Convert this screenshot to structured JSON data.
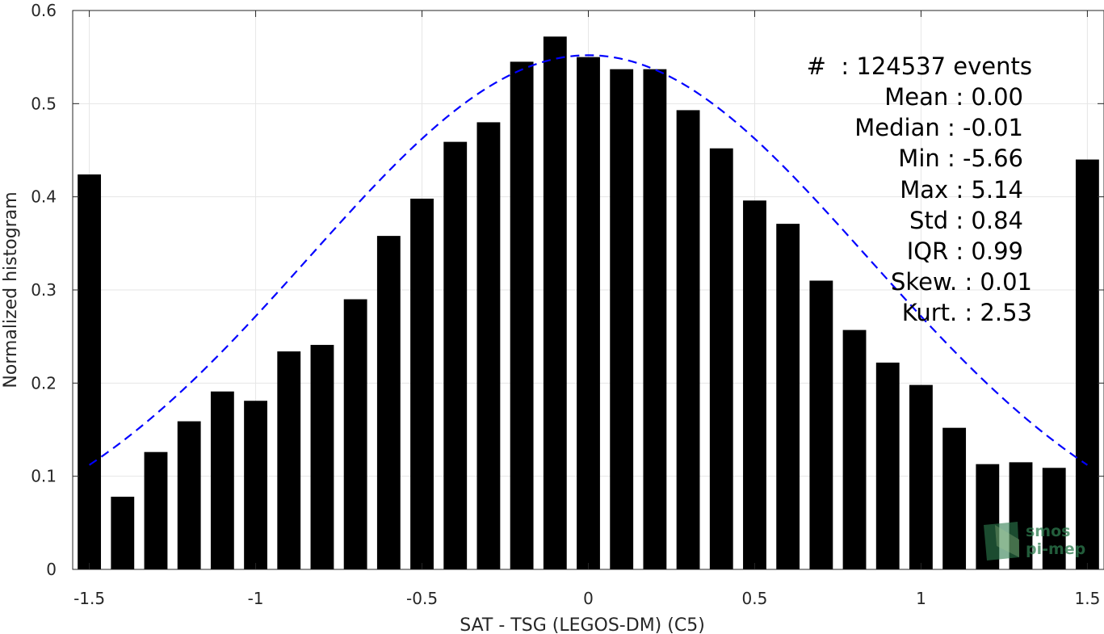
{
  "chart_data": {
    "type": "bar",
    "xlabel": "SAT - TSG (LEGOS-DM) (C5)",
    "ylabel": "Normalized histogram",
    "xlim": [
      -1.55,
      1.55
    ],
    "ylim": [
      0,
      0.6
    ],
    "xticks": [
      -1.5,
      -1,
      -0.5,
      0,
      0.5,
      1,
      1.5
    ],
    "xtick_labels": [
      "-1.5",
      "-1",
      "-0.5",
      "0",
      "0.5",
      "1",
      "1.5"
    ],
    "yticks": [
      0,
      0.1,
      0.2,
      0.3,
      0.4,
      0.5,
      0.6
    ],
    "ytick_labels": [
      "0",
      "0.1",
      "0.2",
      "0.3",
      "0.4",
      "0.5",
      "0.6"
    ],
    "grid": true,
    "bar_width": 0.07,
    "x": [
      -1.5,
      -1.4,
      -1.3,
      -1.2,
      -1.1,
      -1.0,
      -0.9,
      -0.8,
      -0.7,
      -0.6,
      -0.5,
      -0.4,
      -0.3,
      -0.2,
      -0.1,
      0.0,
      0.1,
      0.2,
      0.3,
      0.4,
      0.5,
      0.6,
      0.7,
      0.8,
      0.9,
      1.0,
      1.1,
      1.2,
      1.3,
      1.4,
      1.5
    ],
    "values": [
      0.424,
      0.078,
      0.126,
      0.159,
      0.191,
      0.181,
      0.234,
      0.241,
      0.29,
      0.358,
      0.398,
      0.459,
      0.48,
      0.545,
      0.572,
      0.55,
      0.537,
      0.537,
      0.493,
      0.452,
      0.396,
      0.371,
      0.31,
      0.257,
      0.222,
      0.198,
      0.152,
      0.113,
      0.115,
      0.109,
      0.44
    ],
    "bar_color": "#000000",
    "fit_curve": {
      "style": "dashed",
      "color": "#0000ff",
      "mean": 0.0,
      "std": 0.84,
      "peak": 0.552,
      "x_range": [
        -1.5,
        1.5
      ]
    },
    "stats_lines": [
      "#  : 124537 events",
      "Mean : 0.00",
      "Median : -0.01",
      "Min : -5.66",
      "Max : 5.14",
      "Std : 0.84",
      "IQR : 0.99",
      "Skew. : 0.01",
      "Kurt. : 2.53"
    ],
    "logo": {
      "line1": "smos",
      "line2": "pi-mep",
      "color": "#2e7d4f"
    }
  }
}
